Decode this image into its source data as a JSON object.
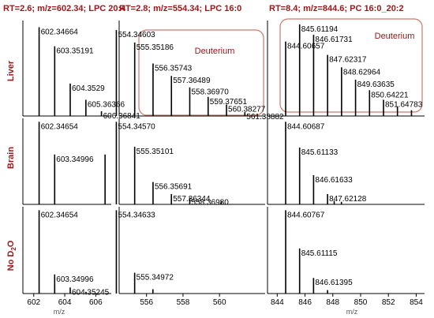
{
  "colors": {
    "header": "#a0161b",
    "row_label": "#a0161b",
    "axis": "#000000",
    "box": "#c97a6a",
    "box_label": "#a0161b",
    "peak": "#000000"
  },
  "rows": [
    {
      "label_main": "Liver",
      "label_sub": ""
    },
    {
      "label_main": "Brain",
      "label_sub": ""
    },
    {
      "label_main": "No D",
      "label_sub": "2",
      "label_tail": "O"
    }
  ],
  "chart_data": [
    {
      "type": "bar",
      "title": "RT=2.6; m/z=602.34; LPC 20:4",
      "xlabel": "m/z",
      "xlim": [
        601.3,
        607.0
      ],
      "xticks": [
        602,
        604,
        606
      ],
      "rows": [
        {
          "peaks": [
            {
              "x": 602.34664,
              "y": 0.93,
              "label": "602.34664"
            },
            {
              "x": 603.35191,
              "y": 0.73,
              "label": "603.35191"
            },
            {
              "x": 604.3529,
              "y": 0.34,
              "label": "604.3529"
            },
            {
              "x": 605.36366,
              "y": 0.17,
              "label": "605.36366"
            },
            {
              "x": 606.36841,
              "y": 0.05,
              "label": "606.36841"
            }
          ]
        },
        {
          "peaks": [
            {
              "x": 602.34654,
              "y": 0.96,
              "label": "602.34654"
            },
            {
              "x": 603.34996,
              "y": 0.58,
              "label": "603.34996"
            },
            {
              "x": 606.6,
              "y": 0.58,
              "label": ""
            }
          ]
        },
        {
          "peaks": [
            {
              "x": 602.34654,
              "y": 0.96,
              "label": "602.34654"
            },
            {
              "x": 603.34996,
              "y": 0.22,
              "label": "603.34996"
            },
            {
              "x": 604.35245,
              "y": 0.07,
              "label": "604.35245"
            },
            {
              "x": 605.37,
              "y": 0.02,
              "label": ""
            }
          ]
        }
      ]
    },
    {
      "type": "bar",
      "title": "RT=2.8; m/z=554.34; LPC 16:0",
      "xlabel": "",
      "xlim": [
        554.5,
        562.5
      ],
      "xticks": [
        556,
        558,
        560
      ],
      "annotation": "Deuterium",
      "rows": [
        {
          "peaks": [
            {
              "x": 554.34603,
              "y": 0.9,
              "label": "554.34603"
            },
            {
              "x": 555.35186,
              "y": 0.77,
              "label": "555.35186"
            },
            {
              "x": 556.35743,
              "y": 0.55,
              "label": "556.35743"
            },
            {
              "x": 557.36489,
              "y": 0.42,
              "label": "557.36489"
            },
            {
              "x": 558.3697,
              "y": 0.3,
              "label": "558.36970"
            },
            {
              "x": 559.37651,
              "y": 0.2,
              "label": "559.37651"
            },
            {
              "x": 560.38277,
              "y": 0.12,
              "label": "560.38277"
            },
            {
              "x": 561.38882,
              "y": 0.04,
              "label": "561.38882"
            }
          ]
        },
        {
          "peaks": [
            {
              "x": 554.3457,
              "y": 0.96,
              "label": "554.34570"
            },
            {
              "x": 555.35101,
              "y": 0.67,
              "label": "555.35101"
            },
            {
              "x": 556.35691,
              "y": 0.26,
              "label": "556.35691"
            },
            {
              "x": 557.36344,
              "y": 0.12,
              "label": "557.36344"
            },
            {
              "x": 558.3698,
              "y": 0.08,
              "label": "558.36980"
            },
            {
              "x": 560.1,
              "y": 0.04,
              "label": ""
            }
          ]
        },
        {
          "peaks": [
            {
              "x": 554.34633,
              "y": 0.96,
              "label": "554.34633"
            },
            {
              "x": 555.34972,
              "y": 0.24,
              "label": "555.34972"
            },
            {
              "x": 556.35,
              "y": 0.05,
              "label": ""
            }
          ]
        }
      ]
    },
    {
      "type": "bar",
      "title": "RT=8.4; m/z=844.6; PC 16:0_20:2",
      "xlabel": "m/z",
      "xlim": [
        843.3,
        854.6
      ],
      "xticks": [
        844,
        846,
        848,
        850,
        852,
        854
      ],
      "annotation": "Deuterium",
      "rows": [
        {
          "peaks": [
            {
              "x": 844.60657,
              "y": 0.78,
              "label": "844.60657"
            },
            {
              "x": 845.61194,
              "y": 0.96,
              "label": "845.61194"
            },
            {
              "x": 846.61731,
              "y": 0.85,
              "label": "846.61731"
            },
            {
              "x": 847.62317,
              "y": 0.64,
              "label": "847.62317"
            },
            {
              "x": 848.62964,
              "y": 0.51,
              "label": "848.62964"
            },
            {
              "x": 849.63635,
              "y": 0.38,
              "label": "849.63635"
            },
            {
              "x": 850.64221,
              "y": 0.27,
              "label": "850.64221"
            },
            {
              "x": 851.64783,
              "y": 0.17,
              "label": "851.64783"
            },
            {
              "x": 852.65,
              "y": 0.1,
              "label": ""
            },
            {
              "x": 853.66,
              "y": 0.06,
              "label": ""
            }
          ]
        },
        {
          "peaks": [
            {
              "x": 844.60687,
              "y": 0.96,
              "label": "844.60687"
            },
            {
              "x": 845.61133,
              "y": 0.66,
              "label": "845.61133"
            },
            {
              "x": 846.61633,
              "y": 0.34,
              "label": "846.61633"
            },
            {
              "x": 847.62128,
              "y": 0.12,
              "label": "847.62128"
            },
            {
              "x": 848.1,
              "y": 0.04,
              "label": ""
            },
            {
              "x": 848.62,
              "y": 0.03,
              "label": ""
            }
          ]
        },
        {
          "peaks": [
            {
              "x": 844.60767,
              "y": 0.96,
              "label": "844.60767"
            },
            {
              "x": 845.61115,
              "y": 0.52,
              "label": "845.61115"
            },
            {
              "x": 846.61395,
              "y": 0.18,
              "label": "846.61395"
            },
            {
              "x": 847.62,
              "y": 0.04,
              "label": ""
            }
          ]
        }
      ]
    }
  ]
}
